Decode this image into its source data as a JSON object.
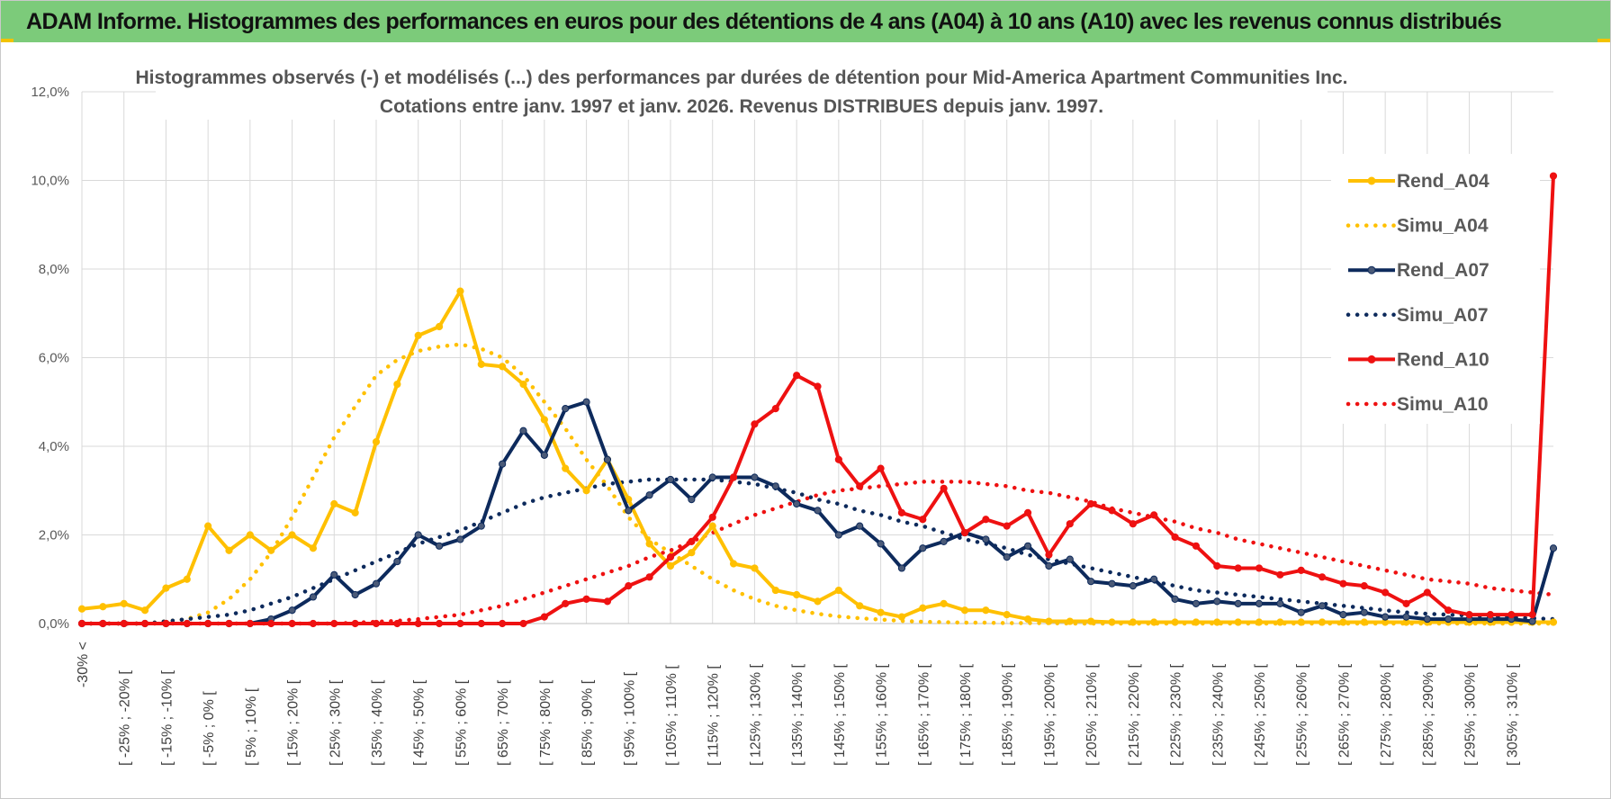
{
  "banner": {
    "title": "ADAM Informe. Histogrammes des performances en euros pour des détentions de 4 ans (A04) à 10 ans (A10) avec les revenus connus distribués"
  },
  "colors": {
    "banner_bg": "#7ccb7a",
    "A04": "#ffc000",
    "A07": "#0d2a5c",
    "A10": "#ee1111",
    "grid": "#d9d9d9"
  },
  "chart_data": {
    "type": "line",
    "title": "Histogrammes observés (-) et modélisés (...) des performances par durées de détention pour Mid-America Apartment Communities Inc.",
    "subtitle": "Cotations entre janv. 1997 et janv. 2026. Revenus DISTRIBUES depuis janv. 1997.",
    "xlabel": "",
    "ylabel": "",
    "ylim": [
      0,
      12
    ],
    "yticks": [
      "0,0%",
      "2,0%",
      "4,0%",
      "6,0%",
      "8,0%",
      "10,0%",
      "12,0%"
    ],
    "grid": true,
    "legend_position": "right",
    "x_tick_labels": [
      "-30% <",
      "[ -25% ; -20% [",
      "[ -15% ; -10% [",
      "[ -5% ; 0% [",
      "[ 5% ; 10% [",
      "[ 15% ; 20% [",
      "[ 25% ; 30% [",
      "[ 35% ; 40% [",
      "[ 45% ; 50% [",
      "[ 55% ; 60% [",
      "[ 65% ; 70% [",
      "[ 75% ; 80% [",
      "[ 85% ; 90% [",
      "[ 95% ; 100% [",
      "[ 105% ; 110% [",
      "[ 115% ; 120% [",
      "[ 125% ; 130% [",
      "[ 135% ; 140% [",
      "[ 145% ; 150% [",
      "[ 155% ; 160% [",
      "[ 165% ; 170% [",
      "[ 175% ; 180% [",
      "[ 185% ; 190% [",
      "[ 195% ; 200% [",
      "[ 205% ; 210% [",
      "[ 215% ; 220% [",
      "[ 225% ; 230% [",
      "[ 235% ; 240% [",
      "[ 245% ; 250% [",
      "[ 255% ; 260% [",
      "[ 265% ; 270% [",
      "[ 275% ; 280% [",
      "[ 285% ; 290% [",
      "[ 295% ; 300% [",
      "[ 305% ; 310% ["
    ],
    "series": [
      {
        "name": "Rend_A04",
        "style": "solid",
        "color": "#ffc000",
        "values": [
          0.33,
          0.38,
          0.45,
          0.3,
          0.8,
          1.0,
          2.2,
          1.65,
          2.0,
          1.65,
          2.0,
          1.7,
          2.7,
          2.5,
          4.1,
          5.4,
          6.5,
          6.7,
          7.5,
          5.85,
          5.8,
          5.4,
          4.6,
          3.5,
          3.0,
          3.7,
          2.8,
          1.8,
          1.3,
          1.6,
          2.2,
          1.35,
          1.25,
          0.75,
          0.65,
          0.5,
          0.75,
          0.4,
          0.25,
          0.15,
          0.35,
          0.45,
          0.3,
          0.3,
          0.2,
          0.1,
          0.05,
          0.05,
          0.05,
          0.03,
          0.03,
          0.03,
          0.03,
          0.03,
          0.03,
          0.03,
          0.03,
          0.03,
          0.03,
          0.03,
          0.03,
          0.03,
          0.03,
          0.03,
          0.03,
          0.03,
          0.03,
          0.03,
          0.03,
          0.03,
          0.03
        ]
      },
      {
        "name": "Simu_A04",
        "style": "dotted",
        "color": "#ffc000",
        "values": [
          0,
          0,
          0,
          0,
          0.05,
          0.1,
          0.25,
          0.55,
          1.0,
          1.6,
          2.4,
          3.3,
          4.2,
          4.9,
          5.6,
          5.95,
          6.15,
          6.25,
          6.3,
          6.2,
          6.0,
          5.6,
          5.0,
          4.4,
          3.7,
          3.1,
          2.4,
          1.9,
          1.6,
          1.3,
          1.0,
          0.75,
          0.55,
          0.4,
          0.3,
          0.22,
          0.16,
          0.12,
          0.09,
          0.06,
          0.04,
          0.03,
          0.02,
          0.02,
          0.01,
          0.01,
          0.01,
          0,
          0,
          0,
          0,
          0,
          0,
          0,
          0,
          0,
          0,
          0,
          0,
          0,
          0,
          0,
          0,
          0,
          0,
          0,
          0,
          0,
          0,
          0,
          0
        ]
      },
      {
        "name": "Rend_A07",
        "style": "solid",
        "color": "#0d2a5c",
        "values": [
          0,
          0,
          0,
          0,
          0,
          0,
          0,
          0,
          0,
          0.1,
          0.3,
          0.6,
          1.1,
          0.65,
          0.9,
          1.4,
          2.0,
          1.75,
          1.9,
          2.2,
          3.6,
          4.35,
          3.8,
          4.85,
          5.0,
          3.7,
          2.55,
          2.9,
          3.25,
          2.8,
          3.3,
          3.3,
          3.3,
          3.1,
          2.7,
          2.55,
          2.0,
          2.2,
          1.8,
          1.25,
          1.7,
          1.85,
          2.05,
          1.9,
          1.5,
          1.75,
          1.3,
          1.45,
          0.95,
          0.9,
          0.85,
          1.0,
          0.55,
          0.45,
          0.5,
          0.45,
          0.45,
          0.45,
          0.25,
          0.4,
          0.2,
          0.25,
          0.15,
          0.15,
          0.1,
          0.1,
          0.1,
          0.1,
          0.1,
          0.05,
          1.7
        ]
      },
      {
        "name": "Simu_A07",
        "style": "dotted",
        "color": "#0d2a5c",
        "values": [
          0,
          0,
          0,
          0,
          0.05,
          0.1,
          0.15,
          0.2,
          0.3,
          0.45,
          0.6,
          0.8,
          1.0,
          1.2,
          1.4,
          1.6,
          1.8,
          1.95,
          2.1,
          2.3,
          2.5,
          2.7,
          2.85,
          2.95,
          3.05,
          3.15,
          3.2,
          3.25,
          3.25,
          3.25,
          3.25,
          3.2,
          3.15,
          3.05,
          2.95,
          2.8,
          2.7,
          2.55,
          2.45,
          2.3,
          2.2,
          2.05,
          1.9,
          1.8,
          1.7,
          1.55,
          1.45,
          1.35,
          1.25,
          1.15,
          1.05,
          0.95,
          0.85,
          0.75,
          0.7,
          0.65,
          0.6,
          0.55,
          0.5,
          0.45,
          0.4,
          0.35,
          0.3,
          0.25,
          0.22,
          0.2,
          0.18,
          0.16,
          0.14,
          0.12,
          0.1
        ]
      },
      {
        "name": "Rend_A10",
        "style": "solid",
        "color": "#ee1111",
        "values": [
          0,
          0,
          0,
          0,
          0,
          0,
          0,
          0,
          0,
          0,
          0,
          0,
          0,
          0,
          0,
          0,
          0,
          0,
          0,
          0,
          0,
          0,
          0.15,
          0.45,
          0.55,
          0.5,
          0.85,
          1.05,
          1.5,
          1.85,
          2.4,
          3.3,
          4.5,
          4.85,
          5.6,
          5.35,
          3.7,
          3.1,
          3.5,
          2.5,
          2.35,
          3.05,
          2.05,
          2.35,
          2.2,
          2.5,
          1.55,
          2.25,
          2.7,
          2.55,
          2.25,
          2.45,
          1.95,
          1.75,
          1.3,
          1.25,
          1.25,
          1.1,
          1.2,
          1.05,
          0.9,
          0.85,
          0.7,
          0.45,
          0.7,
          0.3,
          0.2,
          0.2,
          0.2,
          0.2,
          10.1
        ]
      },
      {
        "name": "Simu_A10",
        "style": "dotted",
        "color": "#ee1111",
        "values": [
          0,
          0,
          0,
          0,
          0,
          0,
          0,
          0,
          0,
          0,
          0,
          0,
          0,
          0.02,
          0.04,
          0.06,
          0.1,
          0.15,
          0.2,
          0.3,
          0.4,
          0.55,
          0.7,
          0.85,
          1.0,
          1.15,
          1.3,
          1.5,
          1.65,
          1.85,
          2.05,
          2.25,
          2.45,
          2.6,
          2.75,
          2.9,
          3.0,
          3.05,
          3.1,
          3.15,
          3.2,
          3.2,
          3.2,
          3.15,
          3.1,
          3.0,
          2.95,
          2.85,
          2.75,
          2.6,
          2.5,
          2.4,
          2.3,
          2.15,
          2.05,
          1.9,
          1.8,
          1.7,
          1.6,
          1.5,
          1.4,
          1.3,
          1.2,
          1.1,
          1.0,
          0.95,
          0.9,
          0.8,
          0.75,
          0.7,
          0.65
        ]
      }
    ]
  }
}
